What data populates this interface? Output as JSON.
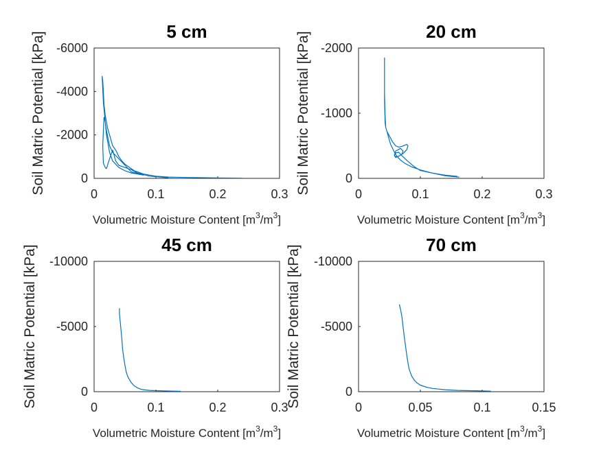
{
  "chart_data": [
    {
      "type": "line",
      "title": "5 cm",
      "xlabel": "Volumetric Moisture Content [m",
      "xlabel_sup1": "3",
      "xlabel_mid": "/m",
      "xlabel_sup2": "3",
      "xlabel_end": "]",
      "ylabel": "Soil Matric Potential [kPa]",
      "xlim": [
        0,
        0.3
      ],
      "ylim": [
        0,
        -6000
      ],
      "xticks": [
        "0",
        "0.1",
        "0.2",
        "0.3"
      ],
      "yticks": [
        "0",
        "-2000",
        "-4000",
        "-6000"
      ],
      "series": [
        {
          "color": "#0072BD",
          "x": [
            0.24,
            0.2,
            0.15,
            0.12,
            0.1,
            0.09,
            0.08,
            0.07,
            0.065,
            0.06,
            0.055,
            0.05,
            0.045,
            0.04,
            0.035,
            0.03,
            0.028,
            0.025,
            0.022,
            0.02,
            0.018,
            0.016,
            0.015,
            0.014,
            0.013,
            0.015,
            0.02,
            0.025,
            0.03,
            0.04,
            0.05,
            0.06,
            0.07,
            0.08,
            0.06,
            0.05,
            0.04,
            0.03,
            0.025,
            0.02,
            0.018,
            0.016,
            0.014,
            0.015,
            0.018,
            0.02,
            0.025,
            0.03,
            0.035,
            0.04,
            0.05,
            0.06,
            0.07,
            0.09,
            0.12
          ],
          "y": [
            -10,
            -20,
            -40,
            -60,
            -100,
            -150,
            -200,
            -300,
            -350,
            -450,
            -550,
            -650,
            -800,
            -1000,
            -1300,
            -1500,
            -1700,
            -2000,
            -2300,
            -2600,
            -2900,
            -3400,
            -4000,
            -4500,
            -4700,
            -3500,
            -2000,
            -1200,
            -800,
            -500,
            -350,
            -250,
            -200,
            -150,
            -300,
            -600,
            -900,
            -1200,
            -1500,
            -2200,
            -2600,
            -2800,
            -1500,
            -700,
            -500,
            -450,
            -900,
            -1300,
            -800,
            -600,
            -500,
            -400,
            -250,
            -100,
            -30
          ]
        }
      ]
    },
    {
      "type": "line",
      "title": "20 cm",
      "xlabel": "Volumetric Moisture Content [m",
      "xlabel_sup1": "3",
      "xlabel_mid": "/m",
      "xlabel_sup2": "3",
      "xlabel_end": "]",
      "ylabel": "Soil Matric Potential [kPa]",
      "xlim": [
        0,
        0.3
      ],
      "ylim": [
        0,
        -2000
      ],
      "xticks": [
        "0",
        "0.1",
        "0.2",
        "0.3"
      ],
      "yticks": [
        "0",
        "-1000",
        "-2000"
      ],
      "series": [
        {
          "color": "#0072BD",
          "x": [
            0.163,
            0.15,
            0.14,
            0.12,
            0.1,
            0.085,
            0.075,
            0.068,
            0.062,
            0.058,
            0.055,
            0.052,
            0.05,
            0.048,
            0.046,
            0.044,
            0.043,
            0.042,
            0.042,
            0.042,
            0.043,
            0.044,
            0.046,
            0.05,
            0.055,
            0.06,
            0.065,
            0.07,
            0.075,
            0.078,
            0.08,
            0.078,
            0.072,
            0.065,
            0.06,
            0.058,
            0.06,
            0.068,
            0.072,
            0.07,
            0.065,
            0.06,
            0.058,
            0.06,
            0.065,
            0.07,
            0.08,
            0.09,
            0.1,
            0.12,
            0.14,
            0.16
          ],
          "y": [
            -20,
            -30,
            -40,
            -80,
            -130,
            -180,
            -230,
            -280,
            -340,
            -400,
            -460,
            -520,
            -580,
            -650,
            -720,
            -780,
            -950,
            -1300,
            -1850,
            -1200,
            -850,
            -780,
            -720,
            -650,
            -560,
            -500,
            -480,
            -490,
            -510,
            -520,
            -500,
            -440,
            -380,
            -340,
            -330,
            -360,
            -420,
            -460,
            -420,
            -370,
            -340,
            -320,
            -350,
            -390,
            -400,
            -350,
            -260,
            -180,
            -120,
            -80,
            -50,
            -30
          ]
        }
      ]
    },
    {
      "type": "line",
      "title": "45 cm",
      "xlabel": "Volumetric Moisture Content [m",
      "xlabel_sup1": "3",
      "xlabel_mid": "/m",
      "xlabel_sup2": "3",
      "xlabel_end": "]",
      "ylabel": "Soil Matric Potential [kPa]",
      "xlim": [
        0,
        0.3
      ],
      "ylim": [
        0,
        -10000
      ],
      "xticks": [
        "0",
        "0.1",
        "0.2",
        "0.3"
      ],
      "yticks": [
        "0",
        "-5000",
        "-10000"
      ],
      "series": [
        {
          "color": "#0072BD",
          "x": [
            0.14,
            0.12,
            0.1,
            0.09,
            0.08,
            0.075,
            0.07,
            0.065,
            0.06,
            0.055,
            0.052,
            0.05,
            0.048,
            0.046,
            0.045,
            0.044,
            0.043,
            0.042,
            0.041,
            0.041
          ],
          "y": [
            -30,
            -50,
            -80,
            -100,
            -150,
            -200,
            -300,
            -450,
            -700,
            -1100,
            -1500,
            -2000,
            -2600,
            -3300,
            -4000,
            -4500,
            -5000,
            -5500,
            -6000,
            -6400
          ]
        }
      ]
    },
    {
      "type": "line",
      "title": "70 cm",
      "xlabel": "Volumetric Moisture Content [m",
      "xlabel_sup1": "3",
      "xlabel_mid": "/m",
      "xlabel_sup2": "3",
      "xlabel_end": "]",
      "ylabel": "Soil Matric Potential [kPa]",
      "xlim": [
        0,
        0.15
      ],
      "ylim": [
        0,
        -10000
      ],
      "xticks": [
        "0",
        "0.05",
        "0.1",
        "0.15"
      ],
      "yticks": [
        "0",
        "-5000",
        "-10000"
      ],
      "series": [
        {
          "color": "#0072BD",
          "x": [
            0.107,
            0.1,
            0.09,
            0.08,
            0.07,
            0.06,
            0.055,
            0.05,
            0.047,
            0.045,
            0.043,
            0.041,
            0.04,
            0.039,
            0.038,
            0.037,
            0.036,
            0.035,
            0.034,
            0.033
          ],
          "y": [
            -40,
            -60,
            -80,
            -100,
            -150,
            -250,
            -350,
            -500,
            -700,
            -900,
            -1200,
            -1700,
            -2200,
            -2800,
            -3500,
            -4200,
            -5000,
            -5800,
            -6300,
            -6700
          ]
        }
      ]
    }
  ]
}
